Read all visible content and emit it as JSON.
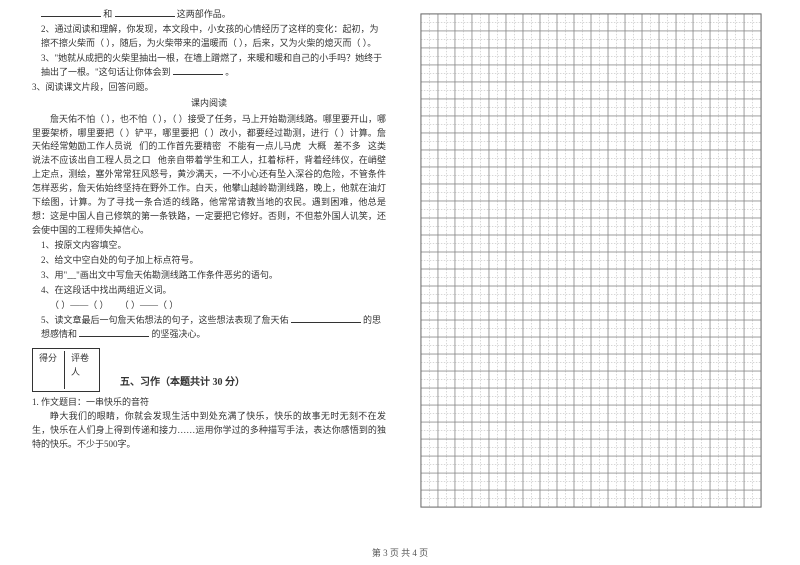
{
  "leftColumn": {
    "line_blank": {
      "and": "和",
      "suffix": "这两部作品。"
    },
    "q2": {
      "prefix": "2、通过阅读和理解，你发现，本文段中，小女孩的心情经历了这样的变化：起初，为擦不擦火柴而（",
      "mid1": "），随后，为火柴带来的温暖而（",
      "mid2": "），后来，又为火柴的熄灭而（",
      "end": "）。"
    },
    "q3": {
      "text": "3、\"她就从成把的火柴里抽出一根，在墙上蹭燃了，来暖和暖和自己的小手吗？她终于抽出了一根。\"这句话让你体会到",
      "end": "。"
    },
    "q3_title": "3、阅读课文片段，回答问题。",
    "inner_title": "课内阅读",
    "passage": {
      "p1_a": "詹天佑不怕（",
      "p1_b": "），也不怕（",
      "p1_c": "），（",
      "p1_d": "）接受了任务，马上开始勘测线路。哪里要开山，哪里要架桥，哪里要把（",
      "p1_e": "）铲平，哪里要把（",
      "p1_f": "）改小，都要经过勘测，进行（",
      "p1_g": "）计算。詹天佑经常勉励工作人员说",
      "p1_h": "们的工作首先要精密",
      "p1_i": "不能有一点儿马虎",
      "p1_j": "差不多",
      "p1_k": "这类说法不应该出自工程人员之口",
      "p1_l": "他亲自带着学生和工人，扛着标杆，背着经纬仪，在峭壁上定点，测绘，塞外常常狂风怒号，黄沙满天，一不小心还有坠入深谷的危险，不管条件怎样恶劣，詹天佑始终坚持在野外工作。白天，他攀山越岭勘测线路，晚上，他就在油灯下绘图，计算。为了寻找一条合适的线路，他常常请教当地的农民。遇到困难，他总是想：这是中国人自己修筑的第一条铁路，一定要把它修好。否则，不但惹外国人讥笑，还会使中国的工程师失掉信心。",
      "da_kuo": "大概",
      "shuo": "说"
    },
    "sub": {
      "s1": "1、按原文内容填空。",
      "s2": "2、给文中空白处的句子加上标点符号。",
      "s3": "3、用\"﹏\"画出文中写詹天佑勘测线路工作条件恶劣的语句。",
      "s4": "4、在这段话中找出两组近义词。",
      "s4_line_a": "（        ）——（        ）",
      "s4_line_b": "（        ）——（        ）",
      "s5_a": "5、读文章最后一句詹天佑想法的句子，这些想法表现了詹天佑",
      "s5_b": "的思想感情和",
      "s5_c": "的坚强决心。"
    },
    "score_labels": {
      "a": "得分",
      "b": "评卷人"
    },
    "section5_title": "五、习作（本题共计 30 分）",
    "essay": {
      "q": "1. 作文题目：一串快乐的音符",
      "body": "睁大我们的眼睛，你就会发现生活中到处充满了快乐，快乐的故事无时无刻不在发生，快乐在人们身上得到传递和接力……运用你学过的多种描写手法，表达你感悟到的独特的快乐。不少于500字。"
    }
  },
  "grid": {
    "cols": 20,
    "rows": 29,
    "cellSize": 17.3,
    "outerBorder": "#666666",
    "cellBorder": "#888888",
    "dashedLine": "#999999",
    "startX": 4,
    "startY": 6
  },
  "footer": {
    "text": "第 3 页 共 4 页"
  }
}
